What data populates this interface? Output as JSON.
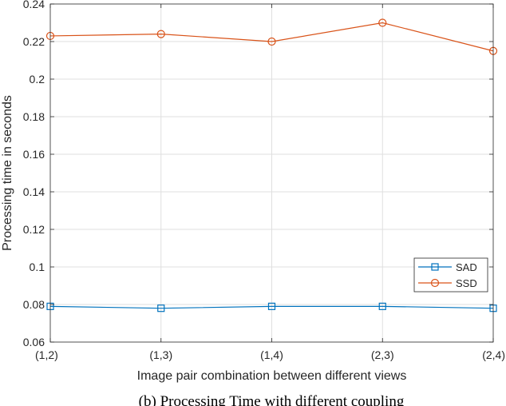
{
  "chart_data": {
    "type": "line",
    "categories": [
      "(1,2)",
      "(1,3)",
      "(1,4)",
      "(2,3)",
      "(2,4)"
    ],
    "series": [
      {
        "name": "SAD",
        "values": [
          0.079,
          0.078,
          0.079,
          0.079,
          0.078
        ],
        "color": "#0072BD",
        "marker": "square"
      },
      {
        "name": "SSD",
        "values": [
          0.223,
          0.224,
          0.22,
          0.23,
          0.215
        ],
        "color": "#D95319",
        "marker": "circle"
      }
    ],
    "xlabel": "Image pair combination between different views",
    "ylabel": "Processing time in seconds",
    "ylim": [
      0.06,
      0.24
    ],
    "yticks": [
      "0.06",
      "0.08",
      "0.1",
      "0.12",
      "0.14",
      "0.16",
      "0.18",
      "0.2",
      "0.22",
      "0.24"
    ],
    "grid": true,
    "legend_position": "bottom-right"
  },
  "caption": "(b) Processing Time with different coupling"
}
